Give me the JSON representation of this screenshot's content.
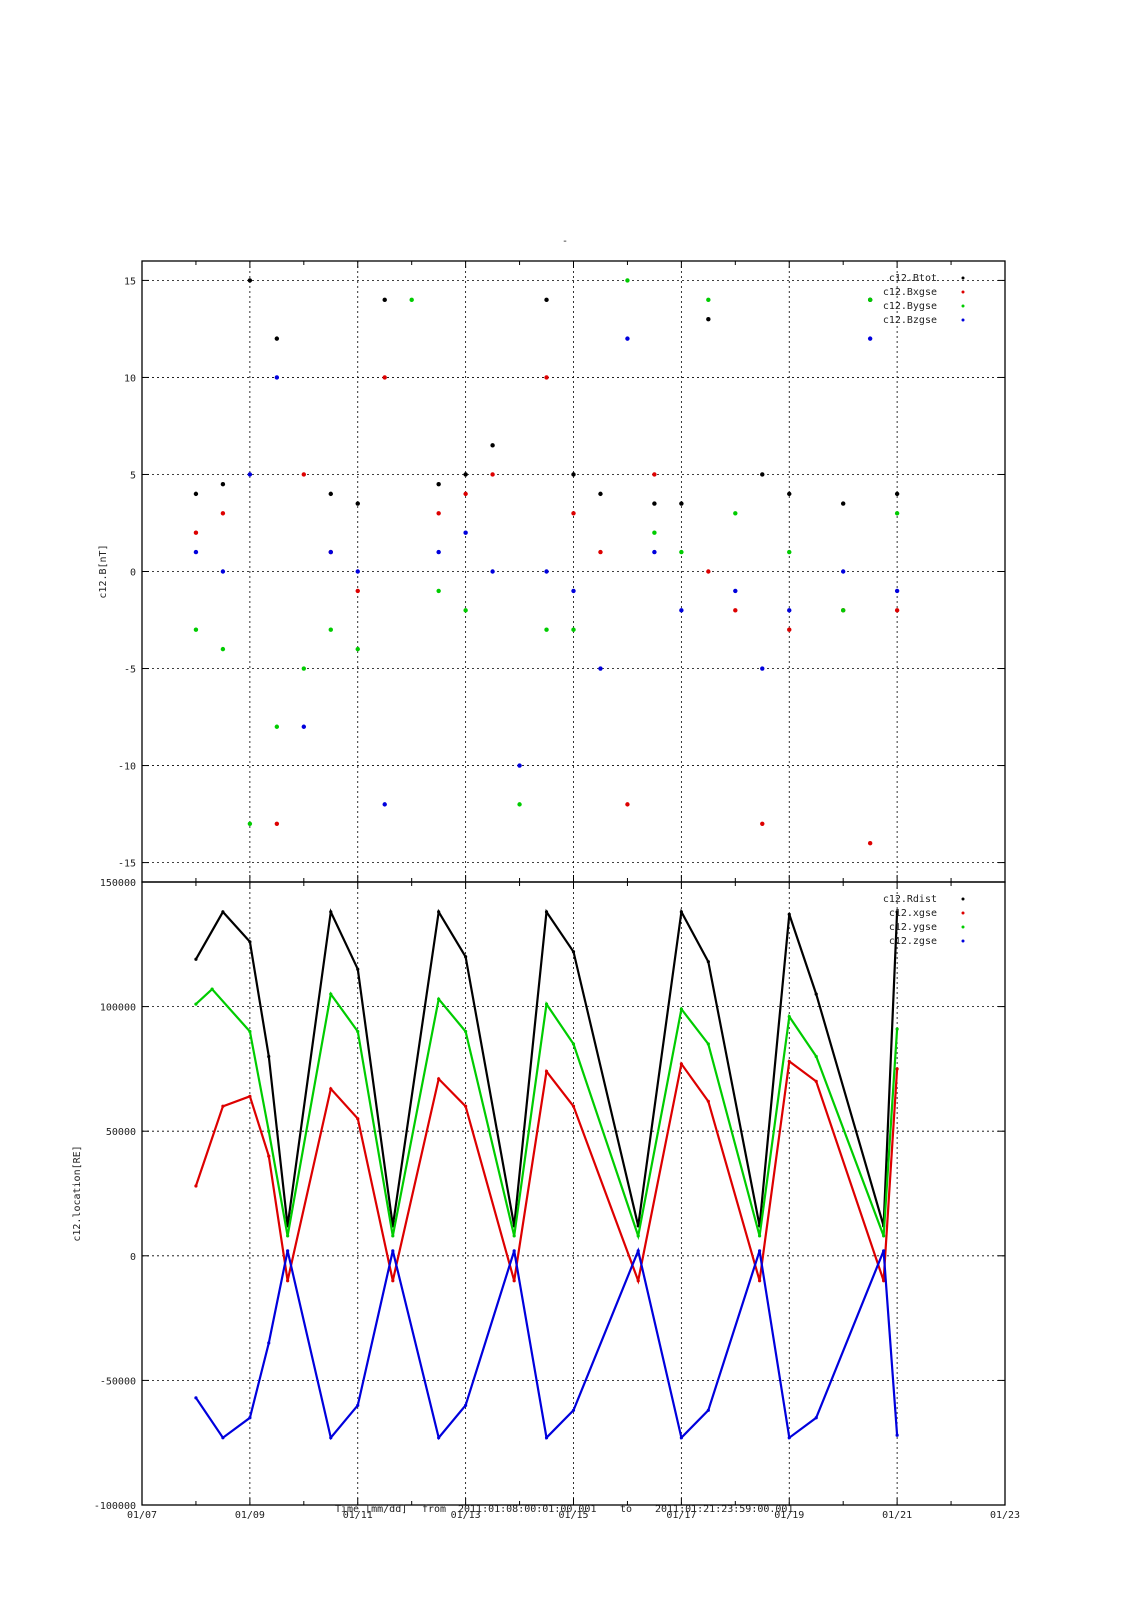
{
  "title": "-",
  "footer": {
    "xlabel": "Time [mm/dd]",
    "range_from_label": "from",
    "range_from": "2011:01:08:00:01:00.001",
    "range_to_label": "to",
    "range_to": "2011:01:21:23:59:00.001"
  },
  "colors": {
    "tot": "#000000",
    "x": "#dd0000",
    "y": "#00cc00",
    "z": "#0000dd",
    "grid": "#000000"
  },
  "chart_data": [
    {
      "type": "scatter",
      "ylabel": "c12.B[nT]",
      "x_unit": "days since 2011-01-07 (mm/dd axis)",
      "xlim": [
        0,
        16
      ],
      "ylim": [
        -16,
        16
      ],
      "xticks": [
        "01/07",
        "01/09",
        "01/11",
        "01/13",
        "01/15",
        "01/17",
        "01/19",
        "01/21",
        "01/23"
      ],
      "yticks": [
        -15,
        -10,
        -5,
        0,
        5,
        10,
        15
      ],
      "grid": true,
      "legend_position": "top-right",
      "series": [
        {
          "name": "c12.Btot",
          "color_key": "tot",
          "x": [
            1.0,
            1.5,
            2.0,
            2.5,
            3.5,
            4.0,
            4.5,
            5.5,
            6.0,
            6.5,
            7.5,
            8.0,
            8.5,
            9.5,
            10.0,
            10.5,
            11.5,
            12.0,
            13.0,
            13.5,
            14.0
          ],
          "y": [
            4.0,
            4.5,
            15.0,
            12.0,
            4.0,
            3.5,
            14.0,
            4.5,
            5.0,
            6.5,
            14.0,
            5.0,
            4.0,
            3.5,
            3.5,
            13.0,
            5.0,
            4.0,
            3.5,
            14.0,
            4.0
          ]
        },
        {
          "name": "c12.Bxgse",
          "color_key": "x",
          "x": [
            1.0,
            1.5,
            2.5,
            3.0,
            3.5,
            4.0,
            4.5,
            5.5,
            6.0,
            6.5,
            7.5,
            8.0,
            8.5,
            9.0,
            9.5,
            10.5,
            11.0,
            11.5,
            12.0,
            13.0,
            13.5,
            14.0
          ],
          "y": [
            2.0,
            3.0,
            -13.0,
            5.0,
            1.0,
            -1.0,
            10.0,
            3.0,
            4.0,
            5.0,
            10.0,
            3.0,
            1.0,
            -12.0,
            5.0,
            0.0,
            -2.0,
            -13.0,
            -3.0,
            -2.0,
            -14.0,
            -2.0
          ]
        },
        {
          "name": "c12.Bygse",
          "color_key": "y",
          "x": [
            1.0,
            1.5,
            2.0,
            2.5,
            3.0,
            3.5,
            4.0,
            5.0,
            5.5,
            6.0,
            7.0,
            7.5,
            8.0,
            9.0,
            9.5,
            10.0,
            10.5,
            11.0,
            12.0,
            13.0,
            13.5,
            14.0
          ],
          "y": [
            -3.0,
            -4.0,
            -13.0,
            -8.0,
            -5.0,
            -3.0,
            -4.0,
            14.0,
            -1.0,
            -2.0,
            -12.0,
            -3.0,
            -3.0,
            15.0,
            2.0,
            1.0,
            14.0,
            3.0,
            1.0,
            -2.0,
            14.0,
            3.0
          ]
        },
        {
          "name": "c12.Bzgse",
          "color_key": "z",
          "x": [
            1.0,
            1.5,
            2.0,
            2.5,
            3.0,
            3.5,
            4.0,
            4.5,
            5.5,
            6.0,
            6.5,
            7.0,
            7.5,
            8.0,
            8.5,
            9.0,
            9.5,
            10.0,
            11.0,
            11.5,
            12.0,
            13.0,
            13.5,
            14.0
          ],
          "y": [
            1.0,
            0.0,
            5.0,
            10.0,
            -8.0,
            1.0,
            0.0,
            -12.0,
            1.0,
            2.0,
            0.0,
            -10.0,
            0.0,
            -1.0,
            -5.0,
            12.0,
            1.0,
            -2.0,
            -1.0,
            -5.0,
            -2.0,
            0.0,
            12.0,
            -1.0
          ]
        }
      ]
    },
    {
      "type": "line",
      "ylabel": "c12.location[RE]",
      "x_unit": "days since 2011-01-07 (mm/dd axis)",
      "xlim": [
        0,
        16
      ],
      "ylim": [
        -100000,
        150000
      ],
      "xticks": [
        "01/07",
        "01/09",
        "01/11",
        "01/13",
        "01/15",
        "01/17",
        "01/19",
        "01/21",
        "01/23"
      ],
      "yticks": [
        -100000,
        -50000,
        0,
        50000,
        100000,
        150000
      ],
      "grid": true,
      "legend_position": "top-right",
      "series": [
        {
          "name": "c12.Rdist",
          "color_key": "tot",
          "x": [
            1.0,
            1.5,
            2.0,
            2.35,
            2.7,
            3.5,
            4.0,
            4.65,
            5.5,
            6.0,
            6.9,
            7.5,
            8.0,
            9.2,
            10.0,
            10.5,
            11.45,
            12.0,
            12.5,
            13.75,
            14.0
          ],
          "y": [
            119000,
            138000,
            126000,
            80000,
            12000,
            138000,
            115000,
            12000,
            138000,
            120000,
            12000,
            138000,
            122000,
            12000,
            138000,
            118000,
            12000,
            137000,
            105000,
            12000,
            138000
          ]
        },
        {
          "name": "c12.xgse",
          "color_key": "x",
          "x": [
            1.0,
            1.5,
            2.0,
            2.35,
            2.7,
            3.5,
            4.0,
            4.65,
            5.5,
            6.0,
            6.9,
            7.5,
            8.0,
            9.2,
            10.0,
            10.5,
            11.45,
            12.0,
            12.5,
            13.75,
            14.0
          ],
          "y": [
            28000,
            60000,
            64000,
            40000,
            -10000,
            67000,
            55000,
            -10000,
            71000,
            60000,
            -10000,
            74000,
            60000,
            -10000,
            77000,
            62000,
            -10000,
            78000,
            70000,
            -10000,
            75000
          ]
        },
        {
          "name": "c12.ygse",
          "color_key": "y",
          "x": [
            1.0,
            1.3,
            2.0,
            2.35,
            2.7,
            3.5,
            4.0,
            4.65,
            5.5,
            6.0,
            6.9,
            7.5,
            8.0,
            9.2,
            10.0,
            10.5,
            11.45,
            12.0,
            12.5,
            13.75,
            14.0
          ],
          "y": [
            101000,
            107000,
            90000,
            50000,
            8000,
            105000,
            90000,
            8000,
            103000,
            90000,
            8000,
            101000,
            85000,
            8000,
            99000,
            85000,
            8000,
            96000,
            80000,
            8000,
            91000
          ]
        },
        {
          "name": "c12.zgse",
          "color_key": "z",
          "x": [
            1.0,
            1.5,
            2.0,
            2.35,
            2.7,
            3.5,
            4.0,
            4.65,
            5.5,
            6.0,
            6.9,
            7.5,
            8.0,
            9.2,
            10.0,
            10.5,
            11.45,
            12.0,
            12.5,
            13.75,
            14.0
          ],
          "y": [
            -57000,
            -73000,
            -65000,
            -35000,
            2000,
            -73000,
            -60000,
            2000,
            -73000,
            -60000,
            2000,
            -73000,
            -62000,
            2000,
            -73000,
            -62000,
            2000,
            -73000,
            -65000,
            2000,
            -72000
          ]
        }
      ]
    }
  ]
}
